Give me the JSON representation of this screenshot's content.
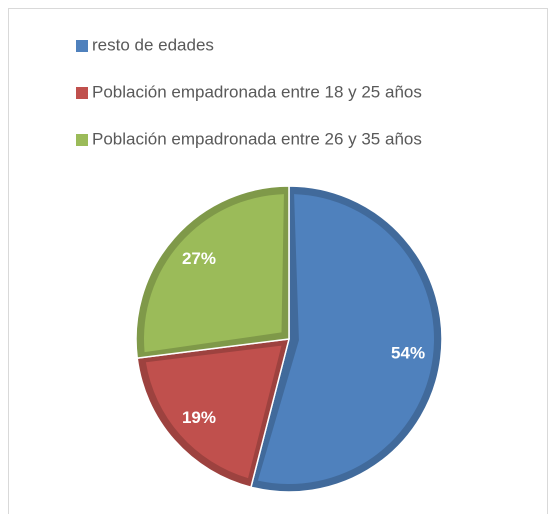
{
  "chart_data": {
    "type": "pie",
    "categories": [
      "resto de edades",
      "Población empadronada entre 18 y 25 años",
      "Población empadronada entre 26 y 35 años"
    ],
    "values": [
      54,
      19,
      27
    ],
    "value_labels": [
      "54%",
      "19%",
      "27%"
    ],
    "colors": [
      "#4f81bd",
      "#c0504d",
      "#9bbb59"
    ],
    "legend": "top-left"
  }
}
